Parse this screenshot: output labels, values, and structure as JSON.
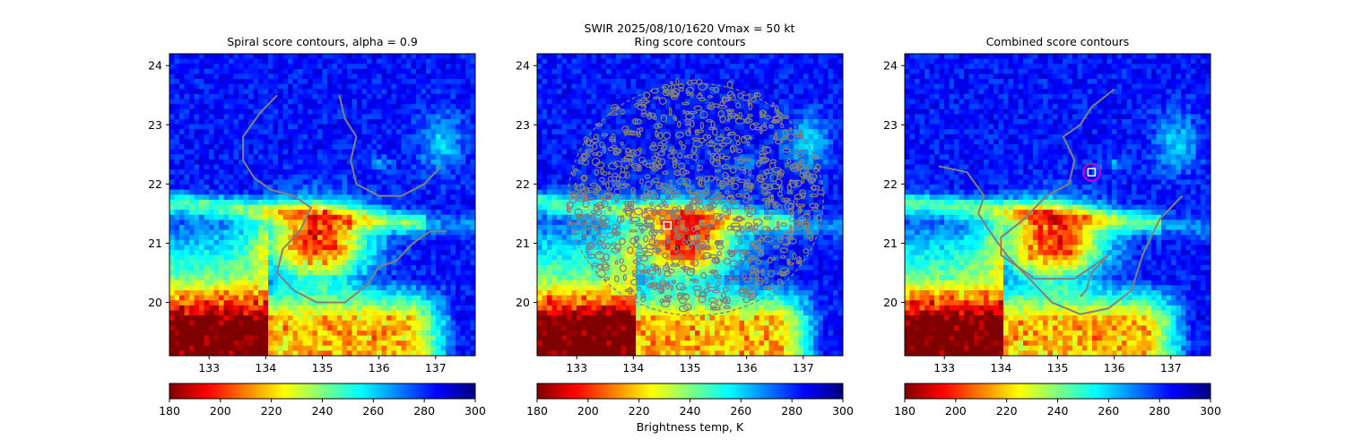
{
  "suptitle": "SWIR  2025/08/10/1620    Vmax = 50 kt",
  "colormap": [
    "#7f0000",
    "#ff0000",
    "#ff7f00",
    "#ffff00",
    "#7fff7f",
    "#00ffff",
    "#007fff",
    "#0000ff",
    "#00007f"
  ],
  "contour_color": "#808080",
  "marker_color": "#ffffff",
  "circle_color": "#cc00cc",
  "chart_data": [
    {
      "type": "heatmap",
      "title": "Spiral score contours, alpha =  0.9",
      "xlim": [
        132.3,
        137.7
      ],
      "ylim": [
        19.1,
        24.2
      ],
      "xticks": [
        133,
        134,
        135,
        136,
        137
      ],
      "yticks": [
        20,
        21,
        22,
        23,
        24
      ],
      "colorbar": {
        "range": [
          180,
          300
        ],
        "ticks": [
          180,
          200,
          220,
          240,
          260,
          280,
          300
        ],
        "label": ""
      },
      "markers": [
        {
          "kind": "plus",
          "x": 135.0,
          "y": 21.6
        }
      ],
      "contours": [
        {
          "name": "spiral-contour-a",
          "points": [
            [
              134.2,
              23.5
            ],
            [
              133.9,
              23.2
            ],
            [
              133.6,
              22.8
            ],
            [
              133.6,
              22.4
            ],
            [
              133.8,
              22.1
            ],
            [
              134.1,
              21.9
            ],
            [
              134.5,
              21.8
            ],
            [
              134.8,
              21.6
            ],
            [
              134.6,
              21.2
            ],
            [
              134.3,
              20.9
            ],
            [
              134.2,
              20.5
            ],
            [
              134.5,
              20.2
            ],
            [
              134.9,
              20.0
            ],
            [
              135.4,
              20.0
            ],
            [
              135.8,
              20.3
            ],
            [
              136.0,
              20.6
            ],
            [
              136.3,
              20.7
            ],
            [
              136.6,
              21.0
            ],
            [
              136.9,
              21.2
            ],
            [
              137.2,
              21.2
            ]
          ]
        },
        {
          "name": "spiral-contour-b",
          "points": [
            [
              135.3,
              23.5
            ],
            [
              135.4,
              23.1
            ],
            [
              135.6,
              22.8
            ],
            [
              135.5,
              22.4
            ],
            [
              135.6,
              22.0
            ],
            [
              136.0,
              21.8
            ],
            [
              136.4,
              21.8
            ],
            [
              136.8,
              22.0
            ],
            [
              137.1,
              22.3
            ]
          ]
        }
      ]
    },
    {
      "type": "heatmap",
      "title": "Ring score contours",
      "xlim": [
        132.3,
        137.7
      ],
      "ylim": [
        19.1,
        24.2
      ],
      "xticks": [
        133,
        134,
        135,
        136,
        137
      ],
      "yticks": [
        20,
        21,
        22,
        23,
        24
      ],
      "colorbar": {
        "range": [
          180,
          300
        ],
        "ticks": [
          180,
          200,
          220,
          240,
          260,
          280,
          300
        ],
        "label": "Brightness temp, K"
      },
      "markers": [
        {
          "kind": "square",
          "x": 134.6,
          "y": 21.3
        }
      ],
      "ring_region": {
        "center": [
          135.1,
          21.8
        ],
        "radius_x": 2.3,
        "radius_y": 2.0
      }
    },
    {
      "type": "heatmap",
      "title": "Combined score contours",
      "xlim": [
        132.3,
        137.7
      ],
      "ylim": [
        19.1,
        24.2
      ],
      "xticks": [
        133,
        134,
        135,
        136,
        137
      ],
      "yticks": [
        20,
        21,
        22,
        23,
        24
      ],
      "colorbar": {
        "range": [
          180,
          300
        ],
        "ticks": [
          180,
          200,
          220,
          240,
          260,
          280,
          300
        ],
        "label": ""
      },
      "markers": [
        {
          "kind": "plus",
          "x": 135.0,
          "y": 21.6
        },
        {
          "kind": "square",
          "x": 135.6,
          "y": 22.2
        },
        {
          "kind": "circle",
          "x": 135.6,
          "y": 22.2
        }
      ],
      "contours": [
        {
          "name": "combined-contour-a",
          "points": [
            [
              136.0,
              23.6
            ],
            [
              135.6,
              23.3
            ],
            [
              135.4,
              23.0
            ],
            [
              135.1,
              22.8
            ],
            [
              135.3,
              22.4
            ],
            [
              135.2,
              22.0
            ],
            [
              134.8,
              21.8
            ],
            [
              134.4,
              21.4
            ],
            [
              134.0,
              21.1
            ],
            [
              134.0,
              20.8
            ],
            [
              134.3,
              20.6
            ],
            [
              134.6,
              20.4
            ],
            [
              135.0,
              20.4
            ],
            [
              135.3,
              20.4
            ],
            [
              135.6,
              20.6
            ],
            [
              135.9,
              20.8
            ],
            [
              135.6,
              20.5
            ],
            [
              135.5,
              20.2
            ],
            [
              135.4,
              20.1
            ]
          ]
        },
        {
          "name": "combined-contour-b",
          "points": [
            [
              132.9,
              22.3
            ],
            [
              133.4,
              22.2
            ],
            [
              133.7,
              21.8
            ],
            [
              133.6,
              21.5
            ],
            [
              133.8,
              21.2
            ],
            [
              134.1,
              20.8
            ],
            [
              134.5,
              20.4
            ],
            [
              134.9,
              20.0
            ],
            [
              135.4,
              19.8
            ],
            [
              135.9,
              19.9
            ],
            [
              136.3,
              20.2
            ],
            [
              136.5,
              20.8
            ],
            [
              136.8,
              21.4
            ],
            [
              137.2,
              21.8
            ]
          ]
        }
      ]
    }
  ]
}
